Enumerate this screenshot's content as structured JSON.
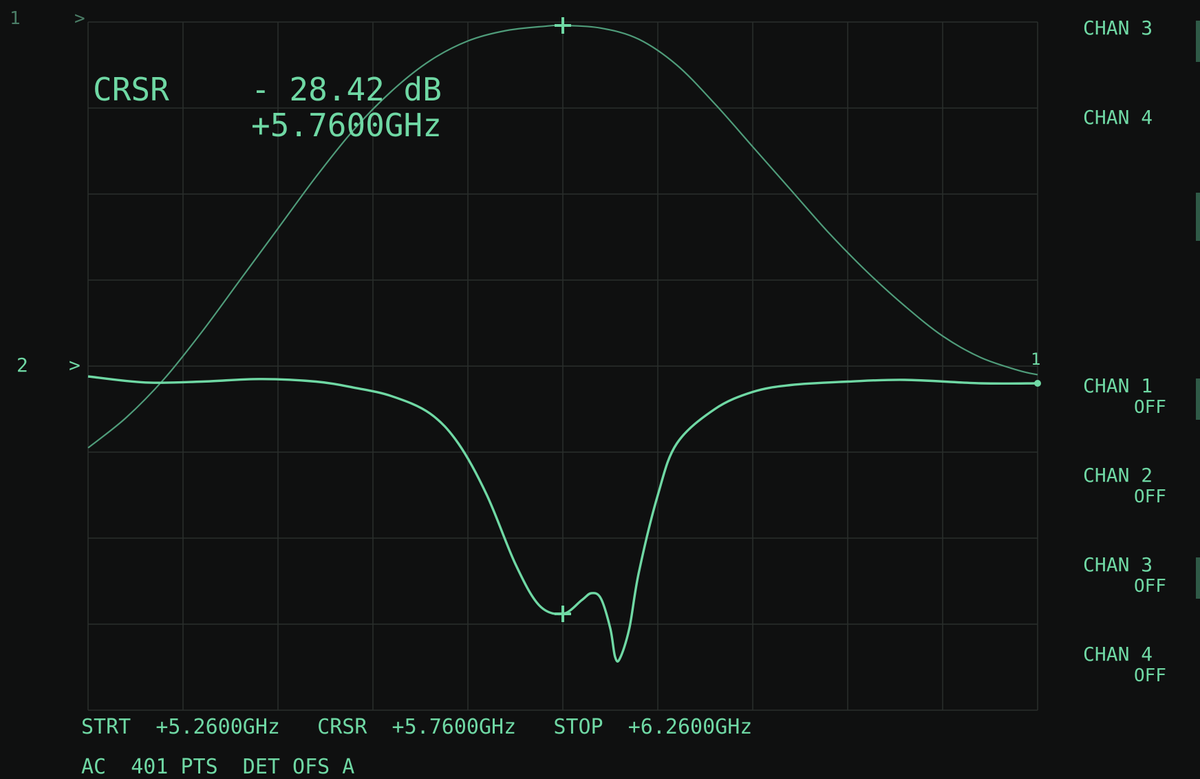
{
  "phosphor": "#6fd8a4",
  "phosphor_dim": "#4f9c7a",
  "top_left_marks": {
    "channel": "1",
    "ref_arrow": ">"
  },
  "readout": {
    "label": "CRSR",
    "value": "- 28.42 dB",
    "frequency": "+5.7600GHz"
  },
  "right_panel": [
    {
      "label": "CHAN 3",
      "sub": ""
    },
    {
      "label": "CHAN 4",
      "sub": ""
    },
    {
      "label": "CHAN 1",
      "sub": "OFF"
    },
    {
      "label": "CHAN 2",
      "sub": "OFF"
    },
    {
      "label": "CHAN 3",
      "sub": "OFF"
    },
    {
      "label": "CHAN 4",
      "sub": "OFF"
    }
  ],
  "ref_markers": {
    "left_number": "2",
    "left_arrow": ">",
    "right_number": "1"
  },
  "footer": {
    "row1": "STRT  +5.2600GHz   CRSR  +5.7600GHz   STOP  +6.2600GHz",
    "row2": "AC  401 PTS  DET OFS A"
  },
  "chart_data": {
    "type": "line",
    "title": "",
    "xlabel": "",
    "ylabel": "",
    "x_unit": "GHz",
    "xlim": [
      5.26,
      6.26
    ],
    "ylim": [
      0,
      8
    ],
    "grid": {
      "x_divisions": 10,
      "y_divisions": 8
    },
    "cursor_x": 5.76,
    "series": [
      {
        "name": "",
        "x": [
          5.26,
          5.3,
          5.34,
          5.38,
          5.42,
          5.46,
          5.5,
          5.54,
          5.58,
          5.62,
          5.66,
          5.7,
          5.74,
          5.76,
          5.8,
          5.84,
          5.88,
          5.92,
          5.96,
          6.0,
          6.04,
          6.08,
          6.12,
          6.16,
          6.2,
          6.24,
          6.26
        ],
        "y": [
          3.05,
          3.4,
          3.85,
          4.4,
          5.0,
          5.6,
          6.2,
          6.75,
          7.2,
          7.55,
          7.78,
          7.9,
          7.95,
          7.96,
          7.93,
          7.8,
          7.5,
          7.05,
          6.55,
          6.05,
          5.55,
          5.1,
          4.7,
          4.35,
          4.1,
          3.95,
          3.9
        ]
      },
      {
        "name": "",
        "x": [
          5.26,
          5.32,
          5.38,
          5.44,
          5.5,
          5.54,
          5.58,
          5.62,
          5.65,
          5.68,
          5.71,
          5.735,
          5.76,
          5.78,
          5.79,
          5.8,
          5.81,
          5.815,
          5.82,
          5.83,
          5.84,
          5.86,
          5.88,
          5.92,
          5.96,
          6.0,
          6.06,
          6.12,
          6.2,
          6.26
        ],
        "y": [
          3.88,
          3.81,
          3.82,
          3.85,
          3.82,
          3.75,
          3.65,
          3.45,
          3.1,
          2.5,
          1.7,
          1.22,
          1.12,
          1.28,
          1.36,
          1.3,
          0.95,
          0.62,
          0.6,
          0.95,
          1.6,
          2.5,
          3.1,
          3.5,
          3.7,
          3.78,
          3.82,
          3.84,
          3.8,
          3.8
        ]
      }
    ],
    "markers": [
      {
        "series": 0,
        "x": 5.76,
        "y": 7.96
      },
      {
        "series": 1,
        "x": 5.76,
        "y": 1.12
      }
    ]
  }
}
